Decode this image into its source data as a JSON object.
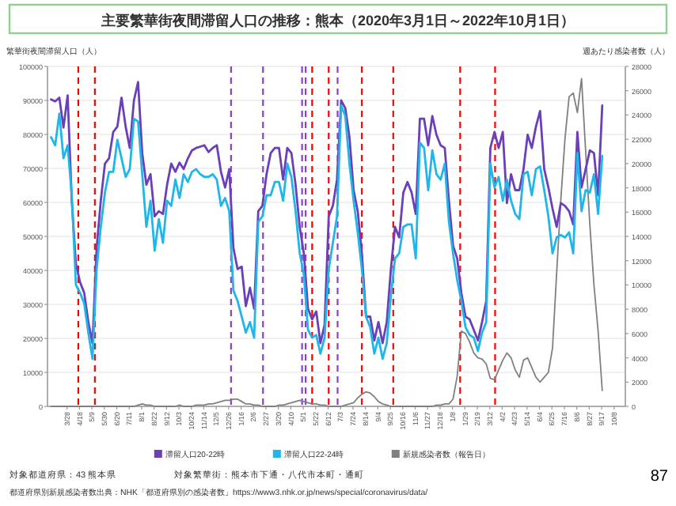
{
  "chart_data": {
    "type": "line",
    "title": "主要繁華街夜間滞留人口の推移：熊本（2020年3月1日～2022年10月1日）",
    "ylabel": "繁華街夜間滞留人口（人）",
    "y2label": "週あたり感染者数（人）",
    "x": [
      "2020-03-01",
      "2020-03-08",
      "2020-03-15",
      "2020-03-22",
      "2020-03-29",
      "2020-04-05",
      "2020-04-12",
      "2020-04-19",
      "2020-04-26",
      "2020-05-03",
      "2020-05-10",
      "2020-05-17",
      "2020-05-24",
      "2020-05-31",
      "2020-06-07",
      "2020-06-14",
      "2020-06-21",
      "2020-06-28",
      "2020-07-05",
      "2020-07-12",
      "2020-07-19",
      "2020-07-26",
      "2020-08-02",
      "2020-08-09",
      "2020-08-16",
      "2020-08-23",
      "2020-08-30",
      "2020-09-06",
      "2020-09-13",
      "2020-09-20",
      "2020-09-27",
      "2020-10-04",
      "2020-10-11",
      "2020-10-18",
      "2020-10-25",
      "2020-11-01",
      "2020-11-08",
      "2020-11-15",
      "2020-11-22",
      "2020-11-29",
      "2020-12-06",
      "2020-12-13",
      "2020-12-20",
      "2020-12-27",
      "2021-01-03",
      "2021-01-10",
      "2021-01-17",
      "2021-01-24",
      "2021-01-31",
      "2021-02-07",
      "2021-02-14",
      "2021-02-21",
      "2021-02-28",
      "2021-03-07",
      "2021-03-14",
      "2021-03-21",
      "2021-03-28",
      "2021-04-04",
      "2021-04-11",
      "2021-04-18",
      "2021-04-25",
      "2021-05-02",
      "2021-05-09",
      "2021-05-16",
      "2021-05-23",
      "2021-05-30",
      "2021-06-06",
      "2021-06-13",
      "2021-06-20",
      "2021-06-27",
      "2021-07-04",
      "2021-07-11",
      "2021-07-18",
      "2021-07-25",
      "2021-08-01",
      "2021-08-08",
      "2021-08-15",
      "2021-08-22",
      "2021-08-29",
      "2021-09-05",
      "2021-09-12",
      "2021-09-19",
      "2021-09-26",
      "2021-10-03",
      "2021-10-10",
      "2021-10-17",
      "2021-10-24",
      "2021-10-31",
      "2021-11-07",
      "2021-11-14",
      "2021-11-21",
      "2021-11-28",
      "2021-12-05",
      "2021-12-12",
      "2021-12-19",
      "2021-12-26",
      "2022-01-02",
      "2022-01-09",
      "2022-01-16",
      "2022-01-23",
      "2022-01-30",
      "2022-02-06",
      "2022-02-13",
      "2022-02-20",
      "2022-02-27",
      "2022-03-06",
      "2022-03-13",
      "2022-03-20",
      "2022-03-27",
      "2022-04-03",
      "2022-04-10",
      "2022-04-17",
      "2022-04-24",
      "2022-05-01",
      "2022-05-08",
      "2022-05-15",
      "2022-05-22",
      "2022-05-29",
      "2022-06-05",
      "2022-06-12",
      "2022-06-19",
      "2022-06-26",
      "2022-07-03",
      "2022-07-10",
      "2022-07-17",
      "2022-07-24",
      "2022-07-31",
      "2022-08-07",
      "2022-08-14",
      "2022-08-21",
      "2022-08-28",
      "2022-09-04",
      "2022-09-11",
      "2022-09-18"
    ],
    "series": [
      {
        "name": "滞留人口20-22時",
        "color": "#6a3fb8",
        "values": [
          90300,
          89700,
          90800,
          82000,
          91500,
          60500,
          41900,
          36500,
          33400,
          24800,
          18600,
          46600,
          60500,
          71400,
          73000,
          80700,
          82300,
          90800,
          82300,
          76000,
          90000,
          95400,
          74500,
          65200,
          68300,
          55900,
          57400,
          56600,
          65200,
          71400,
          69000,
          71700,
          69800,
          72900,
          75300,
          76000,
          76400,
          76800,
          74800,
          76000,
          76800,
          69000,
          64400,
          69800,
          46600,
          40400,
          41100,
          29500,
          34900,
          28700,
          57400,
          59000,
          68300,
          74500,
          76000,
          76000,
          66700,
          76000,
          74500,
          65200,
          52800,
          45000,
          28700,
          25600,
          27900,
          18600,
          24000,
          55900,
          59000,
          66700,
          90000,
          87700,
          79200,
          63600,
          57400,
          45000,
          26400,
          26400,
          19400,
          24800,
          18600,
          24800,
          40400,
          52800,
          49700,
          62900,
          66000,
          62900,
          56600,
          84600,
          84600,
          76800,
          85400,
          79900,
          76800,
          76000,
          60500,
          47300,
          43500,
          33400,
          26400,
          25600,
          22500,
          19400,
          24800,
          31000,
          76000,
          80700,
          76000,
          80700,
          59800,
          68300,
          63600,
          63600,
          69800,
          79900,
          76000,
          82300,
          86900,
          69800,
          64400,
          58200,
          52800,
          59800,
          59000,
          57400,
          53500,
          80700,
          64400,
          69800,
          75300,
          74500,
          62100,
          88500
        ]
      },
      {
        "name": "滞留人口22-24時",
        "color": "#1fb6ea",
        "values": [
          79200,
          76800,
          86100,
          73000,
          76800,
          62100,
          35700,
          33400,
          30300,
          21700,
          14000,
          40400,
          52800,
          62900,
          69000,
          69000,
          78400,
          73000,
          67500,
          69800,
          84600,
          83800,
          68300,
          52800,
          60500,
          45800,
          55100,
          48100,
          60500,
          59000,
          66700,
          61300,
          68300,
          66000,
          69000,
          69800,
          68300,
          67500,
          67500,
          68300,
          66700,
          59000,
          61300,
          57400,
          34100,
          31000,
          26400,
          21700,
          24800,
          20200,
          54300,
          55900,
          62100,
          62100,
          66000,
          66000,
          60500,
          71400,
          67500,
          57400,
          45000,
          38800,
          22500,
          20200,
          21000,
          15500,
          20200,
          40400,
          48100,
          55900,
          88500,
          85400,
          71400,
          60500,
          51200,
          40400,
          26400,
          23300,
          15500,
          20200,
          14000,
          18600,
          32600,
          43500,
          45000,
          52800,
          53500,
          53500,
          43500,
          77600,
          76000,
          63600,
          75300,
          68300,
          66700,
          71400,
          54300,
          45000,
          37200,
          31000,
          23300,
          21000,
          20200,
          16300,
          21700,
          24800,
          71400,
          64400,
          67500,
          60500,
          66700,
          60500,
          56600,
          55100,
          68300,
          69000,
          62100,
          69800,
          70600,
          63600,
          55900,
          45000,
          49700,
          50400,
          49700,
          51200,
          45000,
          74500,
          57400,
          63600,
          62900,
          68300,
          56600,
          73700
        ]
      },
      {
        "name": "新規感染者数（報告日）",
        "color": "#808080",
        "axis": "y2",
        "values": [
          0,
          0,
          0,
          0,
          0,
          0,
          0,
          0,
          0,
          0,
          0,
          0,
          0,
          0,
          0,
          0,
          0,
          0,
          0,
          0,
          0,
          100,
          200,
          100,
          100,
          0,
          0,
          0,
          0,
          0,
          0,
          100,
          0,
          0,
          0,
          100,
          100,
          100,
          200,
          200,
          300,
          400,
          500,
          500,
          600,
          600,
          400,
          200,
          200,
          100,
          100,
          0,
          0,
          0,
          0,
          100,
          100,
          200,
          300,
          400,
          500,
          400,
          300,
          200,
          200,
          100,
          100,
          0,
          0,
          0,
          0,
          100,
          200,
          300,
          700,
          1000,
          1200,
          1100,
          800,
          400,
          200,
          100,
          0,
          0,
          0,
          0,
          0,
          0,
          0,
          0,
          0,
          0,
          0,
          100,
          100,
          200,
          200,
          600,
          2500,
          6200,
          6000,
          5300,
          4400,
          4000,
          3900,
          3500,
          2300,
          2200,
          3000,
          3800,
          4400,
          4000,
          3000,
          2400,
          3800,
          4000,
          3200,
          2400,
          2000,
          2400,
          2800,
          4800,
          11000,
          17000,
          22000,
          25500,
          25800,
          24200,
          27000,
          21000,
          15000,
          10000,
          6200,
          1300
        ]
      }
    ],
    "xlim": [
      "2020-02-24",
      "2022-10-27"
    ],
    "xticks": [
      {
        "value": "2020-03-28",
        "label": "3/28"
      },
      {
        "value": "2020-04-18",
        "label": "4/18"
      },
      {
        "value": "2020-05-09",
        "label": "5/9"
      },
      {
        "value": "2020-05-30",
        "label": "5/30"
      },
      {
        "value": "2020-06-20",
        "label": "6/20"
      },
      {
        "value": "2020-07-11",
        "label": "7/11"
      },
      {
        "value": "2020-08-01",
        "label": "8/1"
      },
      {
        "value": "2020-08-22",
        "label": "8/22"
      },
      {
        "value": "2020-09-12",
        "label": "9/12"
      },
      {
        "value": "2020-10-03",
        "label": "10/3"
      },
      {
        "value": "2020-10-24",
        "label": "10/24"
      },
      {
        "value": "2020-11-14",
        "label": "11/14"
      },
      {
        "value": "2020-12-05",
        "label": "12/5"
      },
      {
        "value": "2020-12-26",
        "label": "12/26"
      },
      {
        "value": "2021-01-16",
        "label": "1/16"
      },
      {
        "value": "2021-02-06",
        "label": "2/6"
      },
      {
        "value": "2021-02-27",
        "label": "2/27"
      },
      {
        "value": "2021-03-20",
        "label": "3/20"
      },
      {
        "value": "2021-04-10",
        "label": "4/10"
      },
      {
        "value": "2021-05-01",
        "label": "5/1"
      },
      {
        "value": "2021-05-22",
        "label": "5/22"
      },
      {
        "value": "2021-06-12",
        "label": "6/12"
      },
      {
        "value": "2021-07-03",
        "label": "7/3"
      },
      {
        "value": "2021-07-24",
        "label": "7/24"
      },
      {
        "value": "2021-08-14",
        "label": "8/14"
      },
      {
        "value": "2021-09-04",
        "label": "9/4"
      },
      {
        "value": "2021-09-25",
        "label": "9/25"
      },
      {
        "value": "2021-10-16",
        "label": "10/16"
      },
      {
        "value": "2021-11-06",
        "label": "11/6"
      },
      {
        "value": "2021-11-27",
        "label": "11/27"
      },
      {
        "value": "2021-12-18",
        "label": "12/18"
      },
      {
        "value": "2022-01-08",
        "label": "1/8"
      },
      {
        "value": "2022-01-29",
        "label": "1/29"
      },
      {
        "value": "2022-02-19",
        "label": "2/19"
      },
      {
        "value": "2022-03-12",
        "label": "3/12"
      },
      {
        "value": "2022-04-02",
        "label": "4/2"
      },
      {
        "value": "2022-04-23",
        "label": "4/23"
      },
      {
        "value": "2022-05-14",
        "label": "5/14"
      },
      {
        "value": "2022-06-04",
        "label": "6/4"
      },
      {
        "value": "2022-06-25",
        "label": "6/25"
      },
      {
        "value": "2022-07-16",
        "label": "7/16"
      },
      {
        "value": "2022-08-06",
        "label": "8/6"
      },
      {
        "value": "2022-08-27",
        "label": "8/27"
      },
      {
        "value": "2022-09-17",
        "label": "9/17"
      },
      {
        "value": "2022-10-08",
        "label": "10/8"
      }
    ],
    "ylim": [
      0,
      100000
    ],
    "yticks": [
      0,
      10000,
      20000,
      30000,
      40000,
      50000,
      60000,
      70000,
      80000,
      90000,
      100000
    ],
    "y2lim": [
      0,
      28000
    ],
    "y2ticks": [
      0,
      2000,
      4000,
      6000,
      8000,
      10000,
      12000,
      14000,
      16000,
      18000,
      20000,
      22000,
      24000,
      26000,
      28000
    ],
    "ref_lines": [
      {
        "axis": "x",
        "value": "2020-04-16",
        "color": "#ff0000",
        "line_style": "dashed"
      },
      {
        "axis": "x",
        "value": "2020-05-14",
        "color": "#ff0000",
        "line_style": "dashed"
      },
      {
        "axis": "x",
        "value": "2020-12-30",
        "color": "#8a3fd0",
        "line_style": "dashed"
      },
      {
        "axis": "x",
        "value": "2021-02-22",
        "color": "#8a3fd0",
        "line_style": "dashed"
      },
      {
        "axis": "x",
        "value": "2021-04-29",
        "color": "#8a3fd0",
        "line_style": "dashed"
      },
      {
        "axis": "x",
        "value": "2021-05-05",
        "color": "#8a3fd0",
        "line_style": "dashed"
      },
      {
        "axis": "x",
        "value": "2021-05-16",
        "color": "#ff0000",
        "line_style": "dashed"
      },
      {
        "axis": "x",
        "value": "2021-06-13",
        "color": "#ff0000",
        "line_style": "dashed"
      },
      {
        "axis": "x",
        "value": "2021-06-28",
        "color": "#8a3fd0",
        "line_style": "dashed"
      },
      {
        "axis": "x",
        "value": "2021-08-08",
        "color": "#ff0000",
        "line_style": "dashed"
      },
      {
        "axis": "x",
        "value": "2021-09-30",
        "color": "#ff0000",
        "line_style": "dashed"
      },
      {
        "axis": "x",
        "value": "2022-01-21",
        "color": "#ff0000",
        "line_style": "dashed"
      },
      {
        "axis": "x",
        "value": "2022-03-21",
        "color": "#ff0000",
        "line_style": "dashed"
      }
    ],
    "grid": "y",
    "legend": "bottom",
    "annotations": [
      "対象都道府県：43 熊本県",
      "対象繁華街：熊本市下通・八代市本町・通町",
      "都道府県別新規感染者数出典：NHK「都道府県別の感染者数」https://www3.nhk.or.jp/news/special/coronavirus/data/",
      "87"
    ]
  }
}
